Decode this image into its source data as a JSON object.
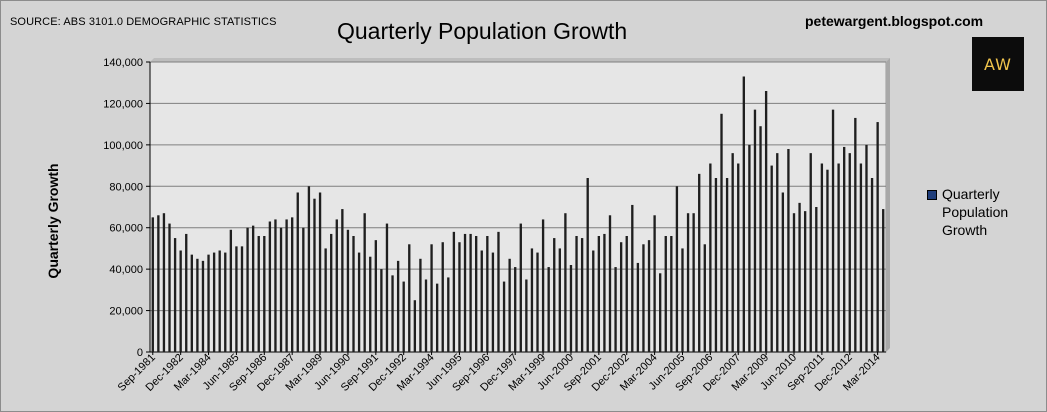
{
  "header": {
    "source": "SOURCE: ABS 3101.0 DEMOGRAPHIC STATISTICS",
    "blog": "petewargent.blogspot.com",
    "logo_text": "AW"
  },
  "colors": {
    "bar": "#1f1f1f",
    "plot_bg": "#e6e6e6",
    "frame_bg": "#d4d4d4",
    "gridline": "#7f7f7f",
    "legend_swatch": "#1f3d7a",
    "logo_text": "#f0c44c"
  },
  "chart_data": {
    "type": "bar",
    "title": "Quarterly Population Growth",
    "xlabel": "",
    "ylabel": "Quarterly Growth",
    "ylim": [
      0,
      140000
    ],
    "yticks": [
      "0",
      "20,000",
      "40,000",
      "60,000",
      "80,000",
      "100,000",
      "120,000",
      "140,000"
    ],
    "grid": true,
    "legend": "right",
    "tick_labels": [
      "Sep-1981",
      "Dec-1982",
      "Mar-1984",
      "Jun-1985",
      "Sep-1986",
      "Dec-1987",
      "Mar-1989",
      "Jun-1990",
      "Sep-1991",
      "Dec-1992",
      "Mar-1994",
      "Jun-1995",
      "Sep-1996",
      "Dec-1997",
      "Mar-1999",
      "Jun-2000",
      "Sep-2001",
      "Dec-2002",
      "Mar-2004",
      "Jun-2005",
      "Sep-2006",
      "Dec-2007",
      "Mar-2009",
      "Jun-2010",
      "Sep-2011",
      "Dec-2012",
      "Mar-2014"
    ],
    "categories_first": "Sep-1981",
    "categories_last": "Mar-2014",
    "series": [
      {
        "name": "Quarterly Population Growth",
        "values": [
          65000,
          66000,
          67000,
          62000,
          55000,
          49000,
          57000,
          47000,
          45000,
          44000,
          47000,
          48000,
          49000,
          48000,
          59000,
          51000,
          51000,
          60000,
          61000,
          56000,
          56000,
          63000,
          64000,
          60000,
          64000,
          65000,
          77000,
          60000,
          80000,
          74000,
          77000,
          50000,
          57000,
          64000,
          69000,
          59000,
          56000,
          48000,
          67000,
          46000,
          54000,
          40000,
          62000,
          37000,
          44000,
          34000,
          52000,
          25000,
          45000,
          35000,
          52000,
          33000,
          53000,
          36000,
          58000,
          53000,
          57000,
          57000,
          56000,
          49000,
          56000,
          48000,
          58000,
          34000,
          45000,
          41000,
          62000,
          35000,
          50000,
          48000,
          64000,
          41000,
          55000,
          50000,
          67000,
          42000,
          56000,
          55000,
          84000,
          49000,
          56000,
          57000,
          66000,
          41000,
          53000,
          56000,
          71000,
          43000,
          52000,
          54000,
          66000,
          38000,
          56000,
          56000,
          80000,
          50000,
          67000,
          67000,
          86000,
          52000,
          91000,
          84000,
          115000,
          84000,
          96000,
          91000,
          133000,
          100000,
          117000,
          109000,
          126000,
          90000,
          96000,
          77000,
          98000,
          67000,
          72000,
          68000,
          96000,
          70000,
          91000,
          88000,
          117000,
          91000,
          99000,
          96000,
          113000,
          91000,
          100000,
          84000,
          111000,
          69000
        ]
      }
    ]
  }
}
